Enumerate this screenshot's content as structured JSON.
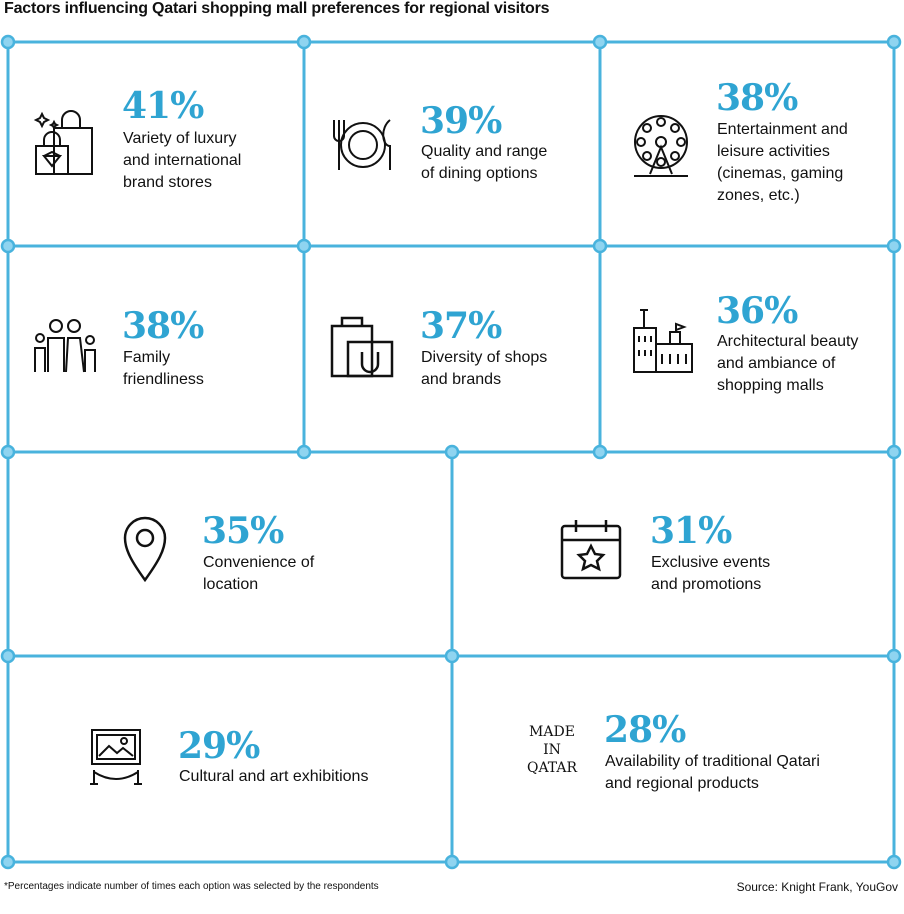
{
  "title": "Factors influencing Qatari shopping mall preferences for regional visitors",
  "footnote": "*Percentages indicate number of times each option was selected by the respondents",
  "source": "Source: Knight Frank, YouGov",
  "colors": {
    "accent": "#2fa4d2",
    "grid_line": "#49b3dd",
    "node": "#8fd4f0"
  },
  "made_in_qatar": "MADE\nIN\nQATAR",
  "chart_data": {
    "type": "table",
    "title": "Factors influencing Qatari shopping mall preferences for regional visitors",
    "items": [
      {
        "value": 41,
        "pct": "41%",
        "label": "Variety of luxury\nand international\nbrand stores",
        "icon": "luxury-shopping-bags-icon"
      },
      {
        "value": 39,
        "pct": "39%",
        "label": "Quality and range\nof dining options",
        "icon": "plate-fork-knife-icon"
      },
      {
        "value": 38,
        "pct": "38%",
        "label": "Entertainment and\nleisure activities\n(cinemas, gaming\nzones, etc.)",
        "icon": "ferris-wheel-icon"
      },
      {
        "value": 38,
        "pct": "38%",
        "label": "Family\nfriendliness",
        "icon": "family-icon"
      },
      {
        "value": 37,
        "pct": "37%",
        "label": "Diversity of shops\nand brands",
        "icon": "shopping-bags-icon"
      },
      {
        "value": 36,
        "pct": "36%",
        "label": "Architectural beauty\nand ambiance of\nshopping malls",
        "icon": "architecture-icon"
      },
      {
        "value": 35,
        "pct": "35%",
        "label": "Convenience of\nlocation",
        "icon": "location-pin-icon"
      },
      {
        "value": 31,
        "pct": "31%",
        "label": "Exclusive events\nand promotions",
        "icon": "calendar-star-icon"
      },
      {
        "value": 29,
        "pct": "29%",
        "label": "Cultural and art exhibitions",
        "icon": "art-exhibit-icon"
      },
      {
        "value": 28,
        "pct": "28%",
        "label": "Availability of traditional Qatari\nand regional products",
        "icon": "made-in-qatar-icon"
      }
    ]
  }
}
